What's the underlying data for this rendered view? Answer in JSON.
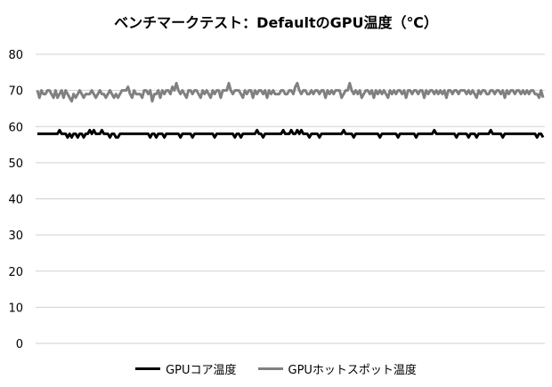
{
  "chart_data": {
    "type": "line",
    "title": "ベンチマークテスト：DefaultのGPU温度（℃）",
    "xlabel": "",
    "ylabel": "",
    "ylim": [
      0,
      80
    ],
    "yticks": [
      "0",
      "10",
      "20",
      "30",
      "40",
      "50",
      "60",
      "70",
      "80"
    ],
    "grid": true,
    "legend": "bottom",
    "series": [
      {
        "name": "GPUコア温度",
        "color": "#000000",
        "values": [
          58,
          58,
          58,
          58,
          58,
          58,
          58,
          58,
          58,
          58,
          58,
          59,
          58,
          58,
          58,
          57,
          58,
          57,
          58,
          58,
          57,
          58,
          58,
          57,
          58,
          58,
          59,
          58,
          59,
          58,
          58,
          58,
          59,
          58,
          58,
          58,
          57,
          58,
          58,
          57,
          57,
          58,
          58,
          58,
          58,
          58,
          58,
          58,
          58,
          58,
          58,
          58,
          58,
          58,
          58,
          58,
          57,
          58,
          58,
          57,
          58,
          58,
          58,
          57,
          58,
          58,
          58,
          58,
          58,
          58,
          58,
          57,
          58,
          58,
          58,
          58,
          58,
          57,
          58,
          58,
          58,
          58,
          58,
          58,
          58,
          58,
          58,
          58,
          57,
          58,
          58,
          58,
          58,
          58,
          58,
          58,
          58,
          58,
          57,
          58,
          58,
          57,
          58,
          58,
          58,
          58,
          58,
          58,
          58,
          59,
          58,
          58,
          57,
          58,
          58,
          58,
          58,
          58,
          58,
          58,
          58,
          58,
          59,
          58,
          58,
          58,
          59,
          58,
          58,
          59,
          58,
          59,
          58,
          58,
          58,
          57,
          58,
          58,
          58,
          58,
          57,
          58,
          58,
          58,
          58,
          58,
          58,
          58,
          58,
          58,
          58,
          58,
          59,
          58,
          58,
          58,
          58,
          57,
          58,
          58,
          58,
          58,
          58,
          58,
          58,
          58,
          58,
          58,
          58,
          58,
          57,
          58,
          58,
          58,
          58,
          58,
          58,
          58,
          58,
          57,
          58,
          58,
          58,
          58,
          58,
          58,
          58,
          58,
          57,
          58,
          58,
          58,
          58,
          58,
          58,
          58,
          58,
          59,
          58,
          58,
          58,
          58,
          58,
          58,
          58,
          58,
          58,
          58,
          57,
          58,
          58,
          58,
          58,
          58,
          57,
          58,
          58,
          58,
          57,
          58,
          58,
          58,
          58,
          58,
          58,
          59,
          58,
          58,
          58,
          58,
          58,
          57,
          58,
          58,
          58,
          58,
          58,
          58,
          58,
          58,
          58,
          58,
          58,
          58,
          58,
          58,
          58,
          58,
          57,
          58,
          58,
          57
        ]
      },
      {
        "name": "GPUホットスポット温度",
        "color": "#808080",
        "values": [
          70,
          68,
          70,
          69,
          69,
          70,
          70,
          69,
          68,
          70,
          68,
          69,
          70,
          68,
          70,
          69,
          68,
          67,
          69,
          68,
          69,
          70,
          69,
          68,
          69,
          69,
          69,
          70,
          69,
          68,
          69,
          70,
          69,
          69,
          68,
          69,
          70,
          69,
          68,
          69,
          68,
          69,
          70,
          70,
          70,
          71,
          69,
          68,
          70,
          69,
          69,
          69,
          68,
          70,
          70,
          69,
          70,
          67,
          69,
          69,
          70,
          68,
          70,
          69,
          70,
          70,
          69,
          71,
          70,
          72,
          70,
          69,
          70,
          69,
          68,
          70,
          70,
          69,
          70,
          70,
          69,
          68,
          70,
          69,
          70,
          69,
          68,
          70,
          69,
          70,
          70,
          68,
          70,
          70,
          70,
          72,
          70,
          69,
          70,
          70,
          70,
          69,
          68,
          70,
          69,
          70,
          70,
          68,
          70,
          69,
          70,
          70,
          69,
          70,
          68,
          70,
          69,
          70,
          69,
          69,
          69,
          70,
          70,
          69,
          69,
          70,
          70,
          69,
          71,
          72,
          70,
          69,
          70,
          70,
          69,
          69,
          70,
          69,
          70,
          70,
          69,
          70,
          70,
          68,
          70,
          69,
          70,
          69,
          70,
          70,
          70,
          68,
          69,
          70,
          70,
          72,
          70,
          69,
          70,
          69,
          70,
          68,
          69,
          70,
          70,
          69,
          70,
          68,
          70,
          69,
          70,
          69,
          70,
          69,
          68,
          70,
          69,
          70,
          69,
          70,
          70,
          69,
          70,
          68,
          70,
          70,
          69,
          70,
          70,
          69,
          70,
          70,
          68,
          70,
          69,
          70,
          70,
          69,
          70,
          69,
          70,
          69,
          70,
          68,
          70,
          70,
          69,
          70,
          70,
          69,
          70,
          70,
          70,
          69,
          70,
          69,
          70,
          69,
          68,
          70,
          69,
          70,
          70,
          69,
          69,
          70,
          70,
          69,
          70,
          70,
          69,
          70,
          68,
          70,
          69,
          70,
          70,
          69,
          70,
          70,
          69,
          70,
          69,
          70,
          69,
          70,
          70,
          69,
          69,
          68,
          70,
          68
        ]
      }
    ]
  }
}
